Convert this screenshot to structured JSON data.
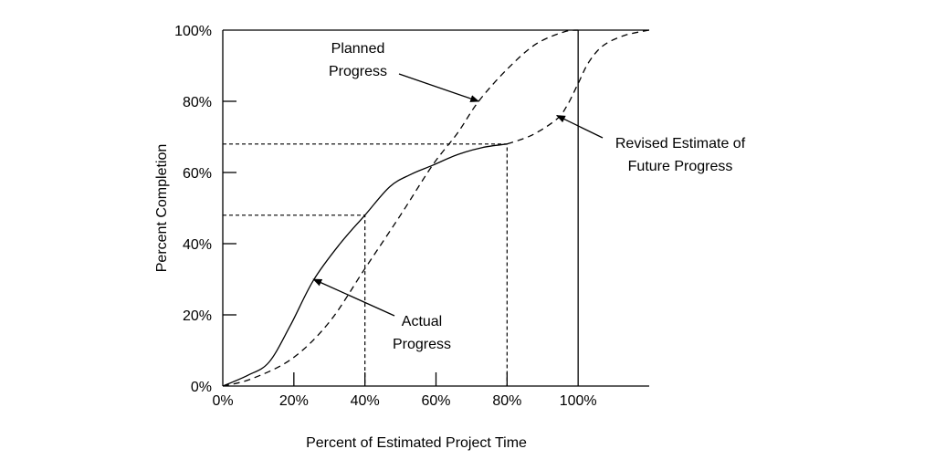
{
  "chart_data": {
    "type": "line",
    "title": "",
    "xlabel": "Percent of Estimated Project Time",
    "ylabel": "Percent Completion",
    "xlim": [
      0,
      120
    ],
    "ylim": [
      0,
      100
    ],
    "x_ticks": [
      0,
      20,
      40,
      60,
      80,
      100
    ],
    "x_tick_labels": [
      "0%",
      "20%",
      "40%",
      "60%",
      "80%",
      "100%"
    ],
    "y_ticks": [
      0,
      20,
      40,
      60,
      80,
      100
    ],
    "y_tick_labels": [
      "0%",
      "20%",
      "40%",
      "60%",
      "80%",
      "100%"
    ],
    "grid": false,
    "colors": {
      "line": "#000000",
      "background": "#ffffff"
    },
    "series": [
      {
        "name": "Planned Progress",
        "style": "dashed",
        "x": [
          0,
          8,
          19.5,
          30,
          40,
          50,
          59,
          66,
          72,
          80,
          88,
          96,
          100
        ],
        "y": [
          0,
          2,
          7.7,
          18,
          33,
          48,
          62,
          71,
          80,
          89,
          96,
          99.5,
          100
        ]
      },
      {
        "name": "Actual Progress",
        "style": "solid",
        "x": [
          0,
          7,
          13,
          19,
          25.5,
          33,
          40,
          47,
          53,
          59,
          66,
          73,
          80
        ],
        "y": [
          0,
          3,
          6.7,
          17,
          29.7,
          40,
          48,
          56,
          59.5,
          62,
          65,
          67,
          68
        ]
      },
      {
        "name": "Revised Estimate of Future Progress",
        "style": "dashed",
        "x": [
          80,
          87,
          94,
          97,
          100,
          103,
          107,
          113,
          120
        ],
        "y": [
          68,
          70.5,
          75,
          79,
          85,
          91,
          95.6,
          98.5,
          100
        ]
      }
    ],
    "reference_lines": [
      {
        "style": "dashed",
        "from": [
          0,
          48
        ],
        "corner": [
          40,
          48
        ],
        "to": [
          40,
          0
        ]
      },
      {
        "style": "dashed",
        "from": [
          0,
          68
        ],
        "corner": [
          80,
          68
        ],
        "to": [
          80,
          0
        ]
      },
      {
        "style": "solid",
        "vertical_at_x": 100
      }
    ],
    "annotations": [
      {
        "lines": [
          "Planned",
          "Progress"
        ],
        "points_to": [
          72,
          80
        ]
      },
      {
        "lines": [
          "Actual",
          "Progress"
        ],
        "points_to": [
          25.5,
          30
        ]
      },
      {
        "lines": [
          "Revised Estimate of",
          "Future Progress"
        ],
        "points_to": [
          94,
          76
        ]
      }
    ]
  }
}
